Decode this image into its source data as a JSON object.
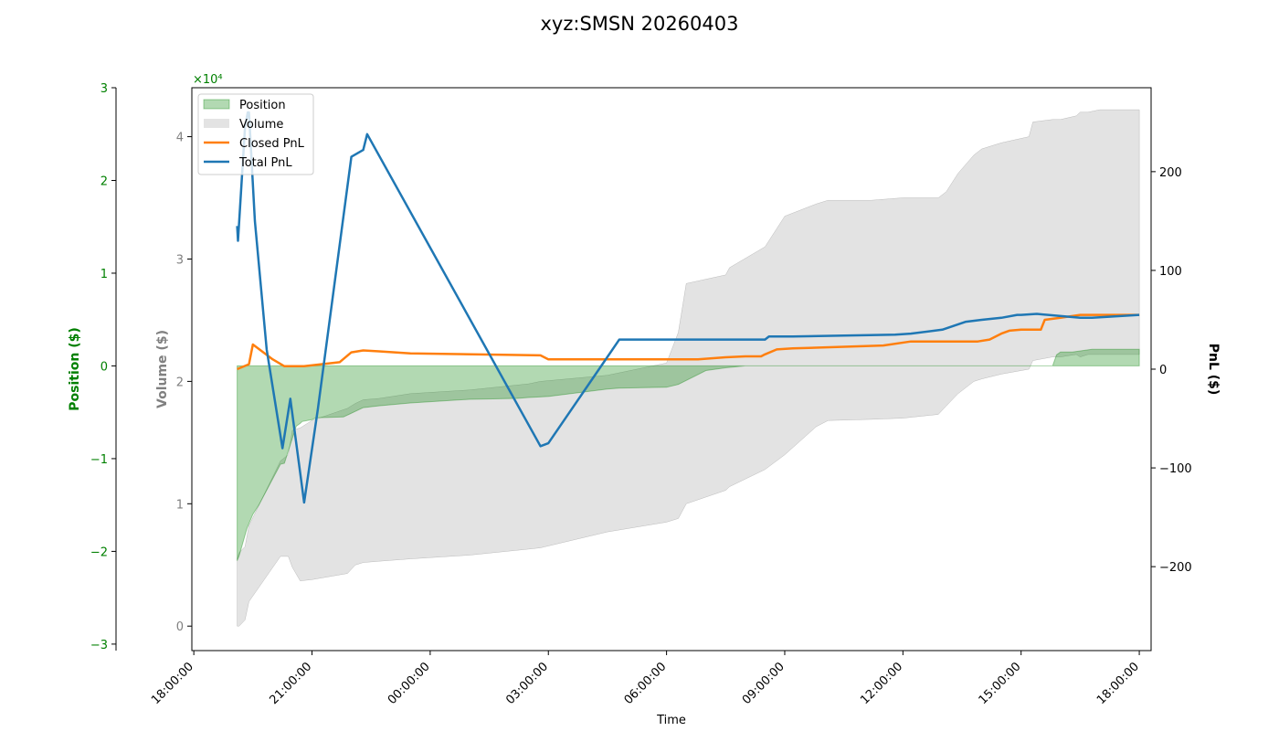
{
  "chart_data": {
    "type": "area",
    "title": "xyz:SMSN 20260403",
    "xlabel": "Time",
    "x_ticks": [
      "18:00:00",
      "21:00:00",
      "00:00:00",
      "03:00:00",
      "06:00:00",
      "09:00:00",
      "12:00:00",
      "15:00:00",
      "18:00:00"
    ],
    "xlim_hours": [
      -0.05,
      24.3
    ],
    "axes": {
      "position": {
        "label": "Position ($)",
        "ylim": [
          -3.07,
          3.0
        ],
        "ticks": [
          -3,
          -2,
          -1,
          0,
          1,
          2,
          3
        ],
        "tick_labels": [
          "−3",
          "−2",
          "−1",
          "0",
          "1",
          "2",
          "3"
        ],
        "multiplier": "×10⁴",
        "color": "#008000"
      },
      "volume": {
        "label": "Volume ($)",
        "ylim": [
          -0.2,
          4.4
        ],
        "ticks": [
          0,
          1,
          2,
          3,
          4
        ],
        "tick_labels": [
          "0",
          "1",
          "2",
          "3",
          "4"
        ],
        "color": "#808080"
      },
      "pnl": {
        "label": "PnL ($)",
        "ylim": [
          -285,
          285
        ],
        "ticks": [
          -200,
          -100,
          0,
          100,
          200
        ],
        "tick_labels": [
          "−200",
          "−100",
          "0",
          "100",
          "200"
        ],
        "color": "#000000"
      }
    },
    "legend": {
      "placement": "top-left",
      "entries": [
        "Position",
        "Volume",
        "Closed PnL",
        "Total PnL"
      ]
    },
    "colors": {
      "position": "#008000",
      "volume": "#c8c8c8",
      "closed_pnl": "#ff7f0e",
      "total_pnl": "#1f77b4"
    },
    "series": [
      {
        "name": "Position",
        "unit": "×10⁴ $",
        "style": "filled area from 0",
        "x": [
          1.1,
          1.15,
          1.35,
          1.5,
          1.65,
          2.2,
          2.3,
          2.6,
          2.7,
          2.75,
          3.0,
          3.1,
          3.8,
          4.3,
          4.7,
          5.5,
          7.0,
          8.2,
          8.5,
          9.0,
          10.5,
          10.8,
          12.0,
          12.3,
          13.0,
          13.5,
          14.0,
          14.6,
          15.0,
          18.0,
          18.3,
          19.0,
          19.5,
          20.0,
          20.5,
          21.2,
          21.3,
          21.8,
          21.9,
          22.0,
          22.3,
          22.8,
          23.0,
          24.0
        ],
        "y": [
          -2.1,
          -2.05,
          -1.75,
          -1.6,
          -1.5,
          -1.06,
          -1.05,
          -0.65,
          -0.62,
          -0.6,
          -0.58,
          -0.56,
          -0.55,
          -0.45,
          -0.43,
          -0.4,
          -0.36,
          -0.35,
          -0.34,
          -0.33,
          -0.25,
          -0.24,
          -0.23,
          -0.2,
          -0.05,
          -0.02,
          0.0,
          0.0,
          0.0,
          0.0,
          0.0,
          0.0,
          0.0,
          0.0,
          0.0,
          0.0,
          0.0,
          0.0,
          0.12,
          0.15,
          0.15,
          0.18,
          0.18,
          0.18
        ]
      },
      {
        "name": "Volume",
        "unit": "×10⁴ $",
        "style": "filled area, upper and lower edge",
        "x": [
          1.1,
          1.15,
          1.3,
          1.4,
          2.2,
          2.4,
          2.5,
          2.7,
          3.0,
          3.9,
          4.1,
          4.3,
          4.7,
          5.5,
          7.0,
          8.5,
          8.8,
          10.5,
          12.0,
          12.3,
          12.5,
          13.5,
          13.6,
          14.5,
          15.0,
          15.8,
          16.1,
          17.2,
          18.0,
          18.9,
          19.1,
          19.4,
          19.8,
          20.0,
          20.5,
          21.2,
          21.3,
          21.8,
          22.0,
          22.4,
          22.5,
          22.7,
          23.0,
          24.0
        ],
        "lower": [
          0.0,
          0.0,
          0.05,
          0.2,
          0.57,
          0.57,
          0.48,
          0.37,
          0.38,
          0.43,
          0.5,
          0.52,
          0.53,
          0.55,
          0.58,
          0.63,
          0.64,
          0.77,
          0.85,
          0.88,
          1.0,
          1.11,
          1.14,
          1.28,
          1.4,
          1.63,
          1.68,
          1.69,
          1.7,
          1.73,
          1.8,
          1.9,
          2.0,
          2.02,
          2.06,
          2.1,
          2.17,
          2.2,
          2.2,
          2.22,
          2.2,
          2.22,
          2.22,
          2.22
        ],
        "upper": [
          0.55,
          0.6,
          0.65,
          0.82,
          1.35,
          1.4,
          1.6,
          1.62,
          1.68,
          1.78,
          1.82,
          1.85,
          1.86,
          1.9,
          1.93,
          1.98,
          2.0,
          2.05,
          2.15,
          2.4,
          2.8,
          2.87,
          2.93,
          3.1,
          3.35,
          3.45,
          3.48,
          3.48,
          3.5,
          3.5,
          3.55,
          3.7,
          3.85,
          3.9,
          3.95,
          4.0,
          4.12,
          4.14,
          4.14,
          4.17,
          4.2,
          4.2,
          4.22,
          4.22
        ]
      },
      {
        "name": "Closed PnL",
        "unit": "$",
        "x": [
          1.1,
          1.4,
          1.5,
          2.0,
          2.3,
          2.6,
          2.8,
          3.7,
          4.0,
          4.3,
          4.7,
          5.5,
          8.8,
          9.0,
          10.0,
          12.5,
          12.8,
          13.5,
          14.0,
          14.4,
          14.5,
          14.8,
          15.2,
          17.5,
          18.2,
          19.0,
          19.2,
          19.6,
          19.9,
          20.2,
          20.5,
          20.7,
          21.0,
          21.5,
          21.6,
          22.0,
          22.5,
          24.0
        ],
        "y": [
          0,
          5,
          25,
          10,
          3,
          3,
          3,
          7,
          17,
          19,
          18,
          16,
          14,
          10,
          10,
          10,
          10,
          12,
          13,
          13,
          15,
          20,
          21,
          24,
          28,
          28,
          28,
          28,
          28,
          30,
          36,
          39,
          40,
          40,
          50,
          52,
          55,
          55
        ]
      },
      {
        "name": "Total PnL",
        "unit": "$",
        "x": [
          1.1,
          1.12,
          1.3,
          1.37,
          1.4,
          1.55,
          1.85,
          2.25,
          2.45,
          2.8,
          3.15,
          4.0,
          4.3,
          4.4,
          8.8,
          9.0,
          10.8,
          12.5,
          14.5,
          14.6,
          15.2,
          17.8,
          18.2,
          19.0,
          19.3,
          19.6,
          20.0,
          20.5,
          20.9,
          21.0,
          21.4,
          22.5,
          22.8,
          24.0
        ],
        "y": [
          145,
          130,
          245,
          260,
          260,
          150,
          20,
          -80,
          -30,
          -135,
          -40,
          215,
          222,
          238,
          -78,
          -75,
          30,
          30,
          30,
          33,
          33,
          35,
          36,
          40,
          44,
          48,
          50,
          52,
          55,
          55,
          56,
          52,
          52,
          55
        ]
      }
    ]
  }
}
